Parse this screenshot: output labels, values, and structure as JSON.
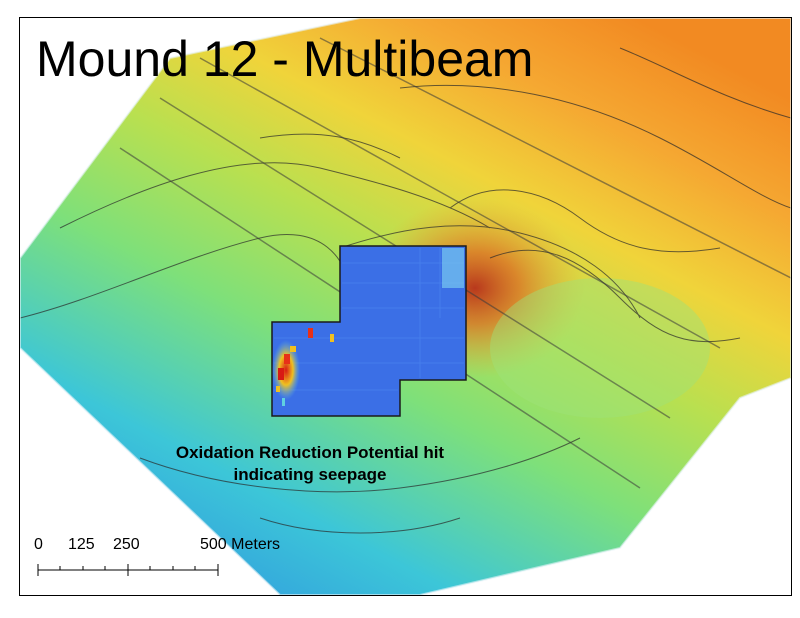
{
  "map": {
    "title": "Mound 12 - Multibeam",
    "annotation": {
      "line1": "Oxidation Reduction Potential hit",
      "line2": "indicating seepage"
    },
    "scale_bar": {
      "labels": [
        "0",
        "125",
        "250",
        "500 Meters"
      ],
      "unit": "Meters"
    },
    "colors": {
      "deep": "#3aa0e0",
      "mid": "#7ee07a",
      "shallow_yellow": "#e8dd40",
      "shallow_orange": "#f09a2c",
      "peak_red": "#c8401a",
      "orp_blue": "#3b6fe6",
      "orp_hit_red": "#d81a14"
    }
  }
}
